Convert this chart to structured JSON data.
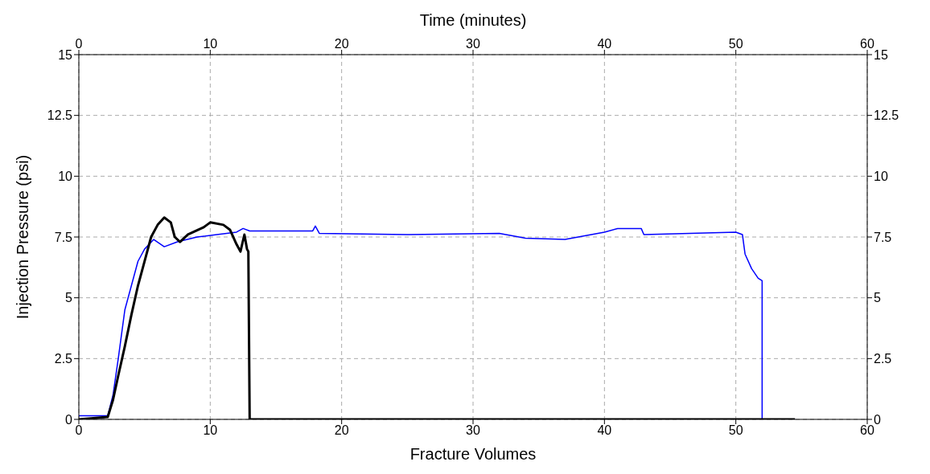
{
  "chart_data": {
    "type": "line",
    "xlabel": "Fracture Volumes",
    "x2label": "Time (minutes)",
    "ylabel": "Injection Pressure (psi)",
    "xlim": [
      0,
      60
    ],
    "xticks": [
      0,
      10,
      20,
      30,
      40,
      50,
      60
    ],
    "x2lim": [
      0,
      60
    ],
    "x2ticks": [
      0,
      10,
      20,
      30,
      40,
      50,
      60
    ],
    "ylim": [
      0,
      15
    ],
    "yticks": [
      0,
      2.5,
      5,
      7.5,
      10,
      12.5,
      15
    ],
    "y2lim": [
      0,
      15
    ],
    "y2ticks": [
      0,
      2.5,
      5,
      7.5,
      10,
      12.5,
      15
    ],
    "grid": true,
    "legend": false,
    "marker": "none",
    "line_style": "solid",
    "series": [
      {
        "color": "#0000ff",
        "x": [
          0,
          2.2,
          2.6,
          3,
          3.5,
          4,
          4.5,
          5,
          5.7,
          6.5,
          7.5,
          9,
          10.5,
          12,
          12.5,
          13,
          17.8,
          18,
          18.3,
          25,
          32,
          34,
          37,
          39,
          40,
          41,
          42.8,
          43,
          50,
          50.5,
          50.7,
          51.2,
          51.7,
          52,
          52,
          54.5
        ],
        "values": [
          0.15,
          0.15,
          1.0,
          2.5,
          4.5,
          5.5,
          6.5,
          7.0,
          7.4,
          7.1,
          7.3,
          7.5,
          7.6,
          7.7,
          7.85,
          7.75,
          7.75,
          7.95,
          7.65,
          7.6,
          7.65,
          7.45,
          7.4,
          7.6,
          7.7,
          7.85,
          7.85,
          7.6,
          7.7,
          7.6,
          6.8,
          6.2,
          5.8,
          5.7,
          0,
          0
        ]
      },
      {
        "color": "#000000",
        "x": [
          0,
          2.2,
          2.6,
          3,
          3.5,
          4,
          4.5,
          5,
          5.5,
          6,
          6.5,
          7,
          7.3,
          7.7,
          8.3,
          9.5,
          10,
          11,
          11.5,
          12,
          12.3,
          12.6,
          12.8,
          12.9,
          13,
          54.5
        ],
        "values": [
          0,
          0.1,
          0.8,
          1.8,
          3,
          4.3,
          5.5,
          6.5,
          7.5,
          8.0,
          8.3,
          8.1,
          7.5,
          7.3,
          7.6,
          7.9,
          8.1,
          8.0,
          7.8,
          7.2,
          6.9,
          7.6,
          7.0,
          6.9,
          0,
          0
        ]
      }
    ]
  }
}
